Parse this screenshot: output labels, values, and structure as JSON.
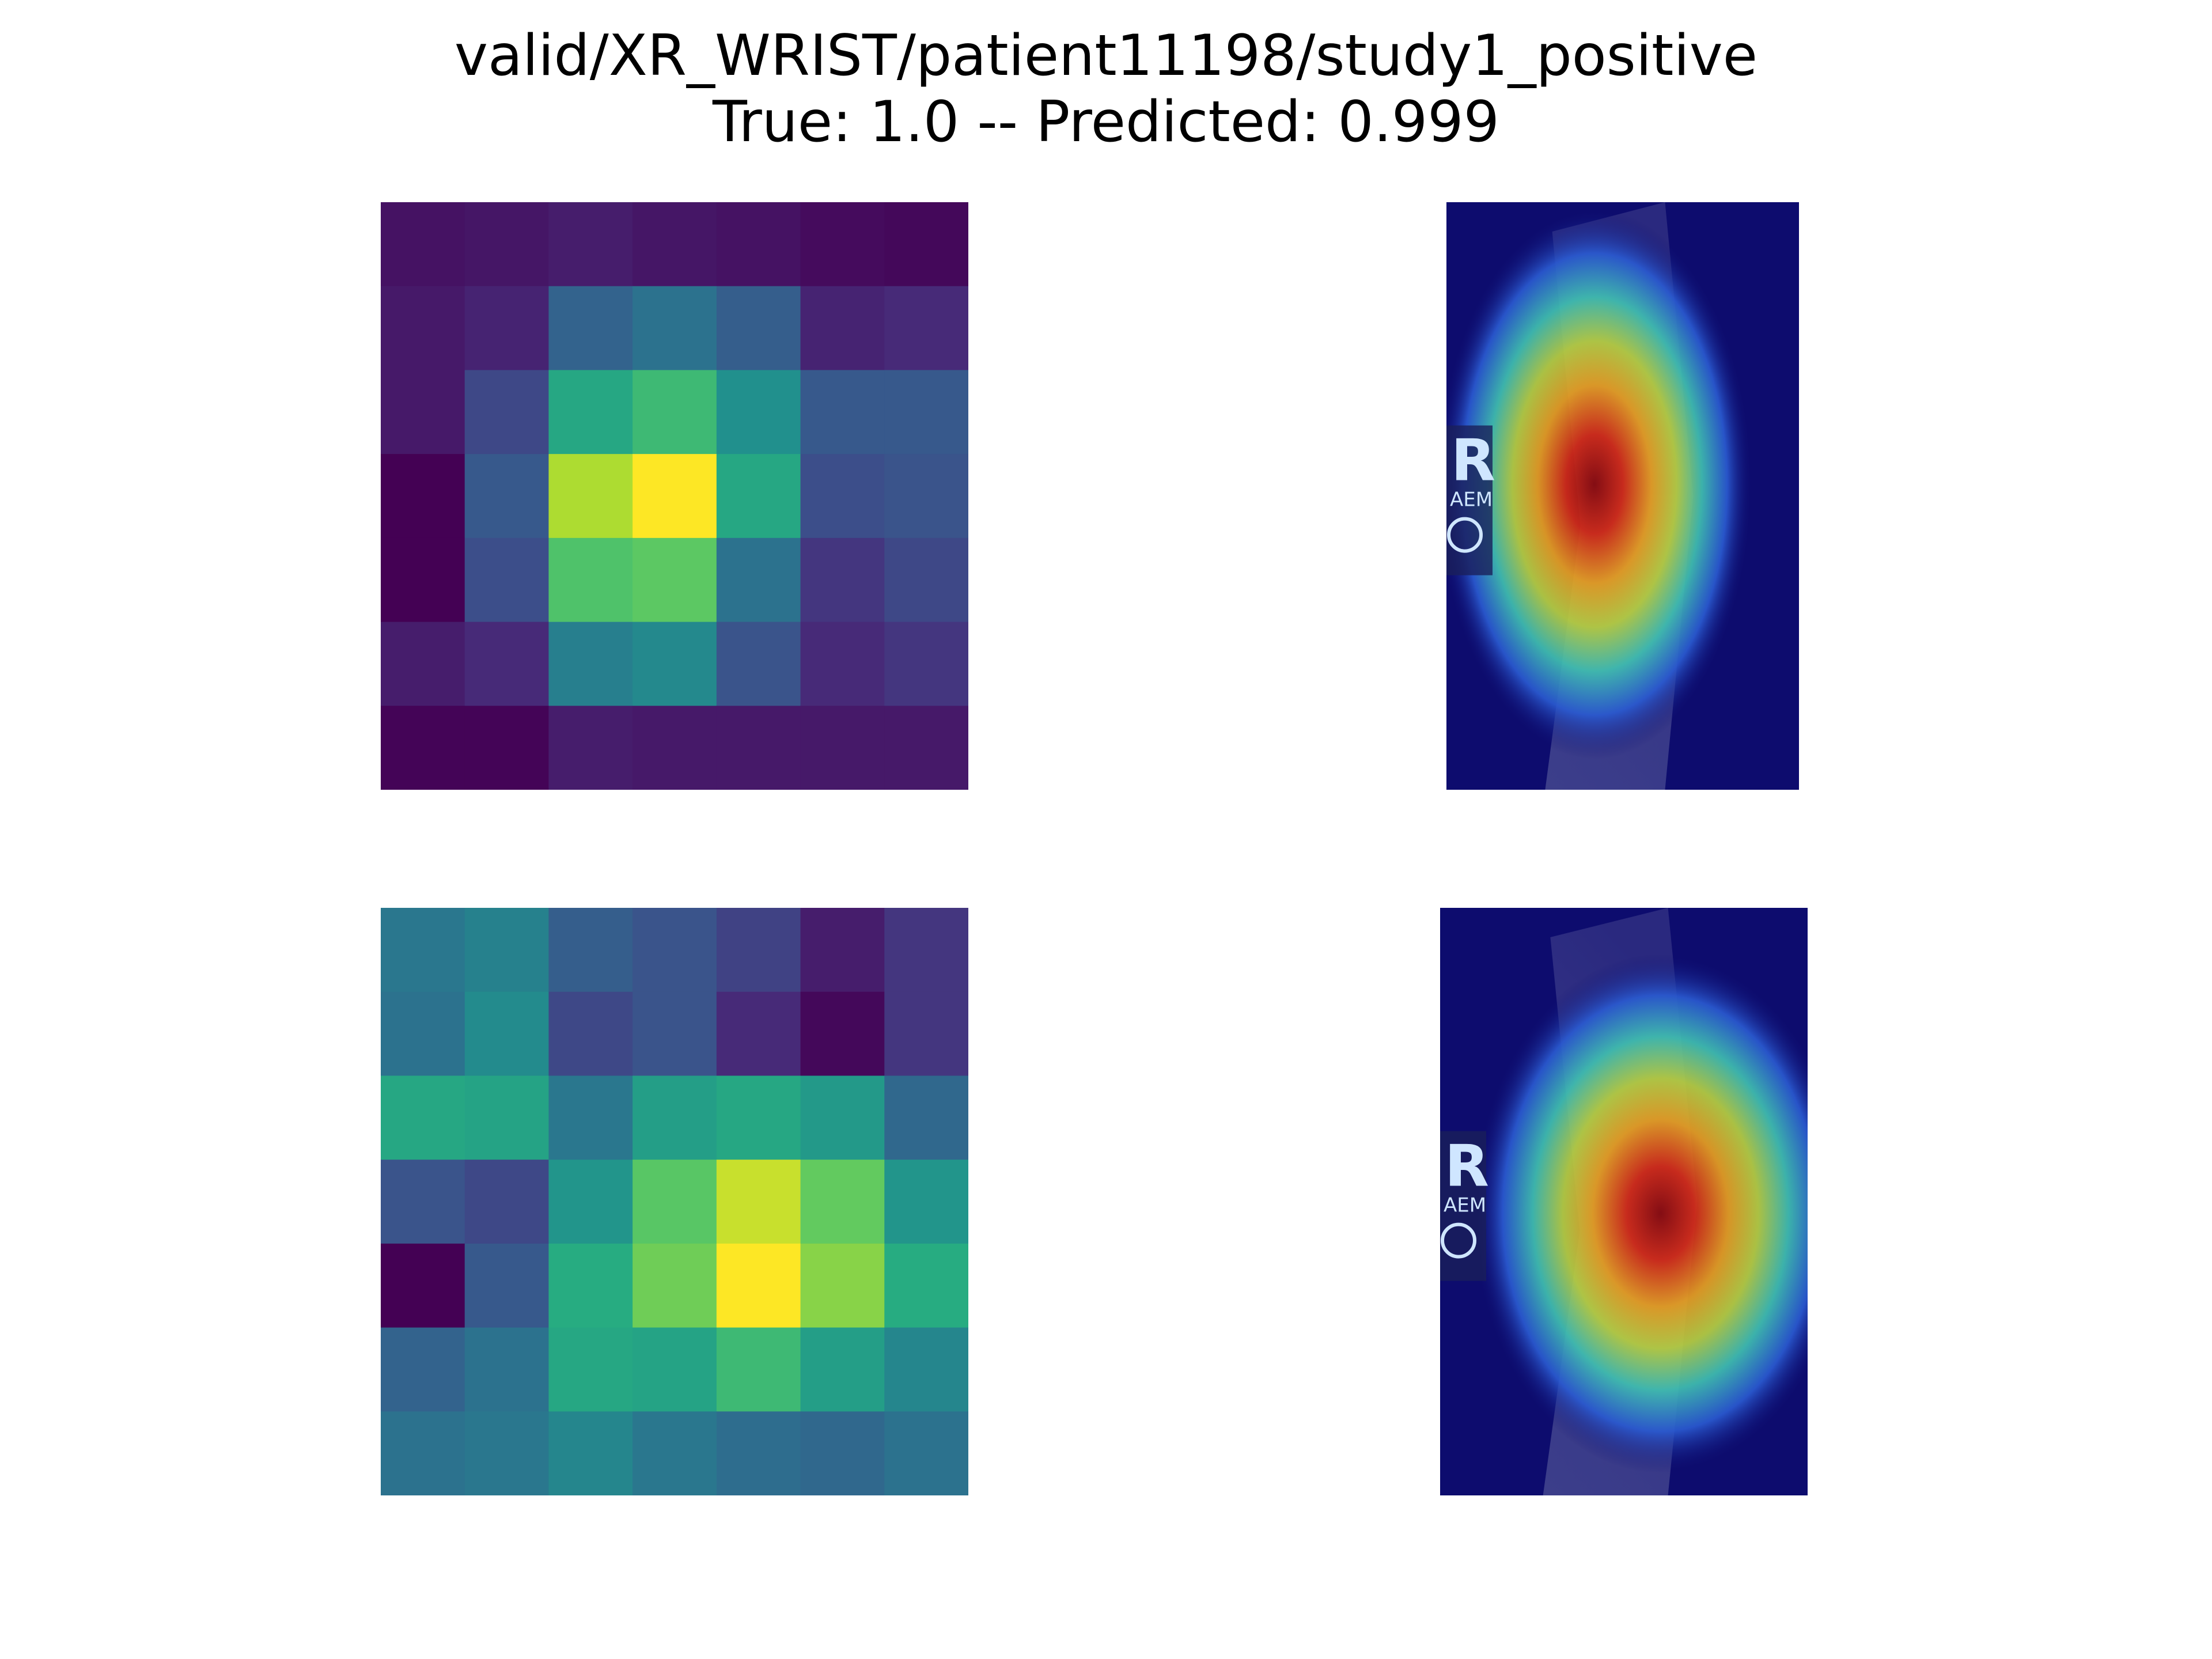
{
  "title": {
    "line1": "valid/XR_WRIST/patient11198/study1_positive",
    "line2": "True: 1.0 -- Predicted: 0.999"
  },
  "chart_data": [
    {
      "type": "heatmap",
      "colormap": "viridis",
      "vmin": 0,
      "vmax": 1,
      "rows": 7,
      "cols": 7,
      "values": [
        [
          0.05,
          0.06,
          0.08,
          0.06,
          0.05,
          0.03,
          0.02
        ],
        [
          0.07,
          0.1,
          0.32,
          0.38,
          0.3,
          0.1,
          0.12
        ],
        [
          0.07,
          0.22,
          0.6,
          0.68,
          0.5,
          0.28,
          0.28
        ],
        [
          0.0,
          0.28,
          0.88,
          1.0,
          0.6,
          0.24,
          0.26
        ],
        [
          0.0,
          0.24,
          0.72,
          0.75,
          0.38,
          0.16,
          0.22
        ],
        [
          0.08,
          0.12,
          0.43,
          0.47,
          0.26,
          0.12,
          0.16
        ],
        [
          0.01,
          0.01,
          0.08,
          0.07,
          0.07,
          0.07,
          0.07
        ]
      ]
    },
    {
      "type": "overlay",
      "description_marker": "R",
      "marker_sub": "AEM",
      "hotspot": {
        "cx": 0.42,
        "cy": 0.48,
        "rx": 0.28,
        "ry": 0.36
      },
      "tint": "#0d0c6e"
    },
    {
      "type": "heatmap",
      "colormap": "viridis",
      "vmin": 0,
      "vmax": 1,
      "rows": 7,
      "cols": 7,
      "values": [
        [
          0.4,
          0.44,
          0.3,
          0.26,
          0.2,
          0.08,
          0.16
        ],
        [
          0.38,
          0.48,
          0.22,
          0.26,
          0.12,
          0.02,
          0.16
        ],
        [
          0.6,
          0.58,
          0.4,
          0.56,
          0.6,
          0.54,
          0.34
        ],
        [
          0.26,
          0.22,
          0.52,
          0.74,
          0.92,
          0.76,
          0.52
        ],
        [
          0.0,
          0.28,
          0.62,
          0.78,
          1.0,
          0.82,
          0.62
        ],
        [
          0.32,
          0.38,
          0.6,
          0.58,
          0.68,
          0.56,
          0.46
        ],
        [
          0.38,
          0.4,
          0.46,
          0.4,
          0.36,
          0.34,
          0.38
        ]
      ]
    },
    {
      "type": "overlay",
      "description_marker": "R",
      "marker_sub": "AEM",
      "hotspot": {
        "cx": 0.6,
        "cy": 0.52,
        "rx": 0.32,
        "ry": 0.34
      },
      "tint": "#0d0c6e"
    }
  ]
}
